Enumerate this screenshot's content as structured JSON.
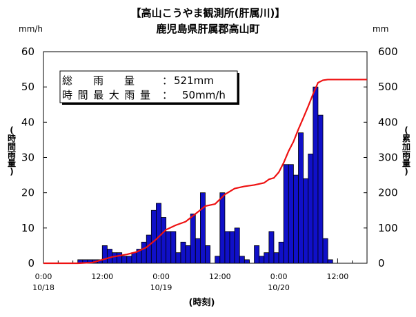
{
  "title_line1": "【高山こうやま観測所(肝属川)】",
  "title_line2": "鹿児島県肝属郡高山町",
  "chart_data": {
    "type": "bar+line",
    "left_axis": {
      "unit": "mm/h",
      "label": "(時間雨量)",
      "ylim": [
        0,
        60
      ],
      "ticks": [
        0,
        10,
        20,
        30,
        40,
        50,
        60
      ]
    },
    "right_axis": {
      "unit": "mm",
      "label": "(累加雨量)",
      "ylim": [
        0,
        600
      ],
      "ticks": [
        0,
        100,
        200,
        300,
        400,
        500,
        600
      ]
    },
    "x_axis": {
      "label": "(時刻)",
      "start": "10/18 0:00",
      "step_hours": 1,
      "hours_total": 66,
      "tick_labels": [
        {
          "hour": 0,
          "time": "0:00",
          "date": "10/18"
        },
        {
          "hour": 12,
          "time": "12:00",
          "date": ""
        },
        {
          "hour": 24,
          "time": "0:00",
          "date": "10/19"
        },
        {
          "hour": 36,
          "time": "12:00",
          "date": ""
        },
        {
          "hour": 48,
          "time": "0:00",
          "date": "10/20"
        },
        {
          "hour": 60,
          "time": "12:00",
          "date": ""
        }
      ]
    },
    "hourly_rain": [
      0,
      0,
      0,
      0,
      0,
      0,
      0,
      1,
      1,
      1,
      1,
      1,
      5,
      4,
      3,
      3,
      2,
      2,
      3,
      4,
      6,
      8,
      15,
      17,
      13,
      9,
      9,
      3,
      6,
      5,
      14,
      7,
      20,
      5,
      0,
      2,
      20,
      9,
      9,
      10,
      2,
      1,
      0,
      5,
      2,
      3,
      9,
      3,
      6,
      28,
      28,
      25,
      37,
      24,
      31,
      50,
      42,
      7,
      1,
      0,
      0,
      0,
      0,
      0,
      0,
      0
    ],
    "cumulative_rain": [
      {
        "t": 0,
        "v": 0
      },
      {
        "t": 7,
        "v": 0
      },
      {
        "t": 10,
        "v": 2
      },
      {
        "t": 12,
        "v": 10
      },
      {
        "t": 14,
        "v": 18
      },
      {
        "t": 17,
        "v": 25
      },
      {
        "t": 19,
        "v": 32
      },
      {
        "t": 21,
        "v": 45
      },
      {
        "t": 23,
        "v": 68
      },
      {
        "t": 25,
        "v": 95
      },
      {
        "t": 27,
        "v": 108
      },
      {
        "t": 29,
        "v": 118
      },
      {
        "t": 31,
        "v": 140
      },
      {
        "t": 33,
        "v": 162
      },
      {
        "t": 35,
        "v": 168
      },
      {
        "t": 37,
        "v": 195
      },
      {
        "t": 39,
        "v": 212
      },
      {
        "t": 41,
        "v": 218
      },
      {
        "t": 43,
        "v": 222
      },
      {
        "t": 45,
        "v": 228
      },
      {
        "t": 46,
        "v": 238
      },
      {
        "t": 47,
        "v": 242
      },
      {
        "t": 48,
        "v": 258
      },
      {
        "t": 49,
        "v": 285
      },
      {
        "t": 50,
        "v": 318
      },
      {
        "t": 51,
        "v": 345
      },
      {
        "t": 52,
        "v": 380
      },
      {
        "t": 53,
        "v": 412
      },
      {
        "t": 54,
        "v": 445
      },
      {
        "t": 55,
        "v": 480
      },
      {
        "t": 56,
        "v": 512
      },
      {
        "t": 57,
        "v": 519
      },
      {
        "t": 58,
        "v": 521
      },
      {
        "t": 66,
        "v": 521
      }
    ],
    "colors": {
      "bars": "#1010c8",
      "bar_edge": "#000000",
      "line": "#ee1111"
    }
  },
  "summary": {
    "total_label": "総　　雨　　量",
    "total_value": "521mm",
    "max_label": "時間最大雨量",
    "max_value": "50mm/h"
  }
}
